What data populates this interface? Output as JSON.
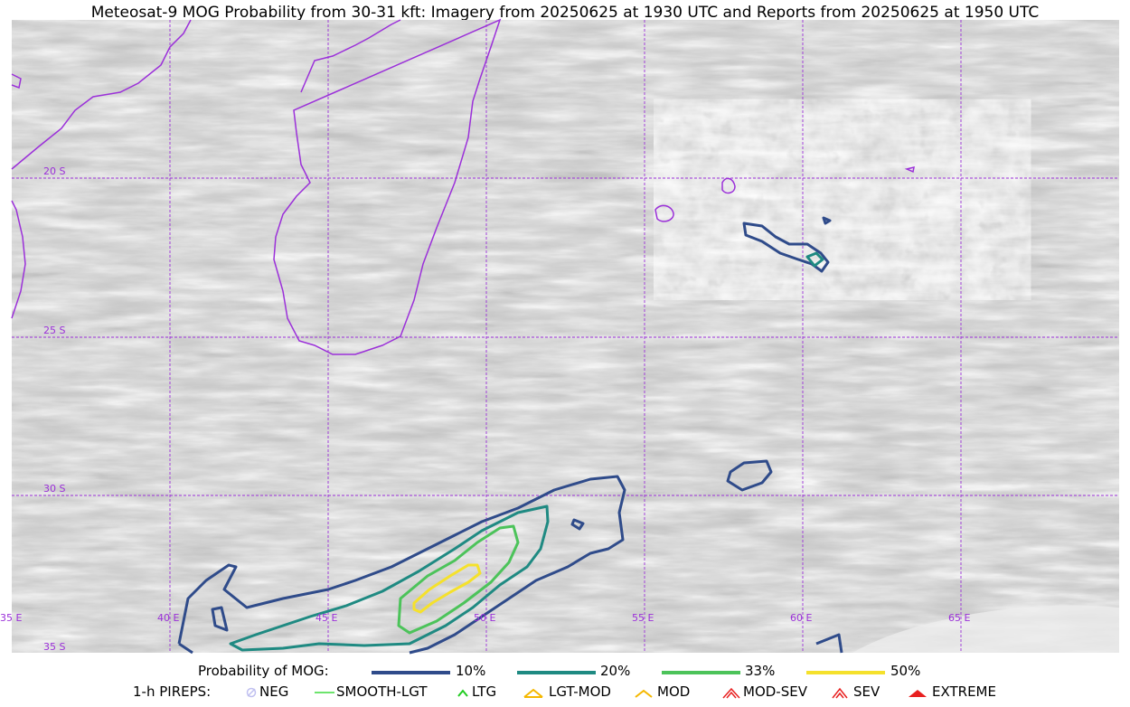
{
  "title": "Meteosat-9 MOG Probability from 30-31 kft: Imagery from 20250625 at 1930 UTC and Reports from 20250625 at 1950 UTC",
  "map": {
    "longitude_labels": [
      "35 E",
      "40 E",
      "45 E",
      "50 E",
      "55 E",
      "60 E",
      "65 E"
    ],
    "latitude_labels": [
      "20 S",
      "25 S",
      "30 S",
      "35 S"
    ],
    "graticule_color": "#9b30d9",
    "coastline_color": "#9b30d9",
    "background": "grayscale satellite imagery"
  },
  "legend": {
    "probability": {
      "label": "Probability of MOG:",
      "items": [
        {
          "label": "10%",
          "color": "#2f4b8a"
        },
        {
          "label": "20%",
          "color": "#1f8a82"
        },
        {
          "label": "33%",
          "color": "#4cc35a"
        },
        {
          "label": "50%",
          "color": "#f5e12c"
        }
      ]
    },
    "pireps": {
      "label": "1-h PIREPS:",
      "items": [
        {
          "label": "NEG",
          "icon": "neg-circle-icon",
          "color": "#c0c0f0"
        },
        {
          "label": "SMOOTH-LGT",
          "icon": "line-icon",
          "color": "#3ddc3d"
        },
        {
          "label": "LTG",
          "icon": "chevron-up-icon",
          "color": "#22cc22"
        },
        {
          "label": "LGT-MOD",
          "icon": "lgt-mod-icon",
          "color": "#f5b800"
        },
        {
          "label": "MOD",
          "icon": "mod-icon",
          "color": "#f5b800"
        },
        {
          "label": "MOD-SEV",
          "icon": "mod-sev-icon",
          "color": "#e82020"
        },
        {
          "label": "SEV",
          "icon": "sev-icon",
          "color": "#e82020"
        },
        {
          "label": "EXTREME",
          "icon": "extreme-icon",
          "color": "#e82020"
        }
      ]
    }
  }
}
